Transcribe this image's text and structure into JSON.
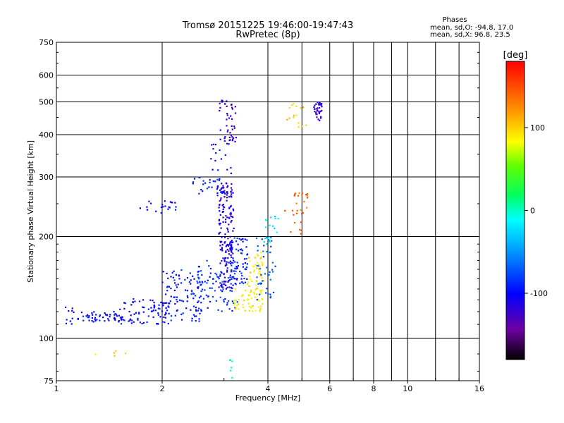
{
  "chart_data": {
    "type": "scatter",
    "title": "Tromsø 20151225 19:46:00-19:47:43",
    "subtitle": "RwPretec (8p)",
    "xlabel": "Frequency [MHz]",
    "ylabel": "Stationary phase Virtual Height [km]",
    "x_scale": "log",
    "y_scale": "log",
    "xlim": [
      1,
      16
    ],
    "ylim": [
      75,
      750
    ],
    "x_ticks": [
      1,
      2,
      4,
      6,
      8,
      10,
      16
    ],
    "y_ticks": [
      75,
      100,
      200,
      300,
      400,
      500,
      600,
      750
    ],
    "grid": true,
    "legend": {
      "title": "Phases",
      "line1": "mean, sd,O: -94.8, 17.0",
      "line2": "mean, sd,X:  96.8, 23.5"
    },
    "colorbar": {
      "label": "[deg]",
      "range": [
        -180,
        180
      ],
      "ticks": [
        100,
        0,
        -100
      ]
    },
    "clusters": [
      {
        "x": [
          1.05,
          1.12
        ],
        "y": [
          107,
          126
        ],
        "phase": -105,
        "n": 10
      },
      {
        "x": [
          1.15,
          1.55
        ],
        "y": [
          112,
          120
        ],
        "phase": -100,
        "n": 50
      },
      {
        "x": [
          1.5,
          2.1
        ],
        "y": [
          110,
          132
        ],
        "phase": -100,
        "n": 80
      },
      {
        "x": [
          2.0,
          2.6
        ],
        "y": [
          112,
          160
        ],
        "phase": -95,
        "n": 100
      },
      {
        "x": [
          2.5,
          3.3
        ],
        "y": [
          120,
          170
        ],
        "phase": -85,
        "n": 90
      },
      {
        "x": [
          2.9,
          3.2
        ],
        "y": [
          140,
          290
        ],
        "phase": -115,
        "n": 170
      },
      {
        "x": [
          3.1,
          3.5
        ],
        "y": [
          145,
          200
        ],
        "phase": -90,
        "n": 70
      },
      {
        "x": [
          3.2,
          3.9
        ],
        "y": [
          120,
          140
        ],
        "phase": 85,
        "n": 55
      },
      {
        "x": [
          3.5,
          3.9
        ],
        "y": [
          140,
          180
        ],
        "phase": 95,
        "n": 40
      },
      {
        "x": [
          3.7,
          4.2
        ],
        "y": [
          130,
          200
        ],
        "phase": -70,
        "n": 45
      },
      {
        "x": [
          3.9,
          4.3
        ],
        "y": [
          190,
          230
        ],
        "phase": -20,
        "n": 18
      },
      {
        "x": [
          2.9,
          3.25
        ],
        "y": [
          380,
          510
        ],
        "phase": -120,
        "n": 45
      },
      {
        "x": [
          2.75,
          3.15
        ],
        "y": [
          250,
          380
        ],
        "phase": -105,
        "n": 25
      },
      {
        "x": [
          1.7,
          2.2
        ],
        "y": [
          235,
          255
        ],
        "phase": -105,
        "n": 22
      },
      {
        "x": [
          2.4,
          3.0
        ],
        "y": [
          265,
          300
        ],
        "phase": -90,
        "n": 25
      },
      {
        "x": [
          5.4,
          5.7
        ],
        "y": [
          440,
          500
        ],
        "phase": -120,
        "n": 35
      },
      {
        "x": [
          4.5,
          5.2
        ],
        "y": [
          420,
          500
        ],
        "phase": 100,
        "n": 15
      },
      {
        "x": [
          4.7,
          5.2
        ],
        "y": [
          230,
          270
        ],
        "phase": 140,
        "n": 18
      },
      {
        "x": [
          4.3,
          5.0
        ],
        "y": [
          200,
          240
        ],
        "phase": 150,
        "n": 10
      },
      {
        "x": [
          3.1,
          3.2
        ],
        "y": [
          76,
          88
        ],
        "phase": -5,
        "n": 6
      },
      {
        "x": [
          1.25,
          1.6
        ],
        "y": [
          88,
          92
        ],
        "phase": 100,
        "n": 6
      }
    ]
  }
}
